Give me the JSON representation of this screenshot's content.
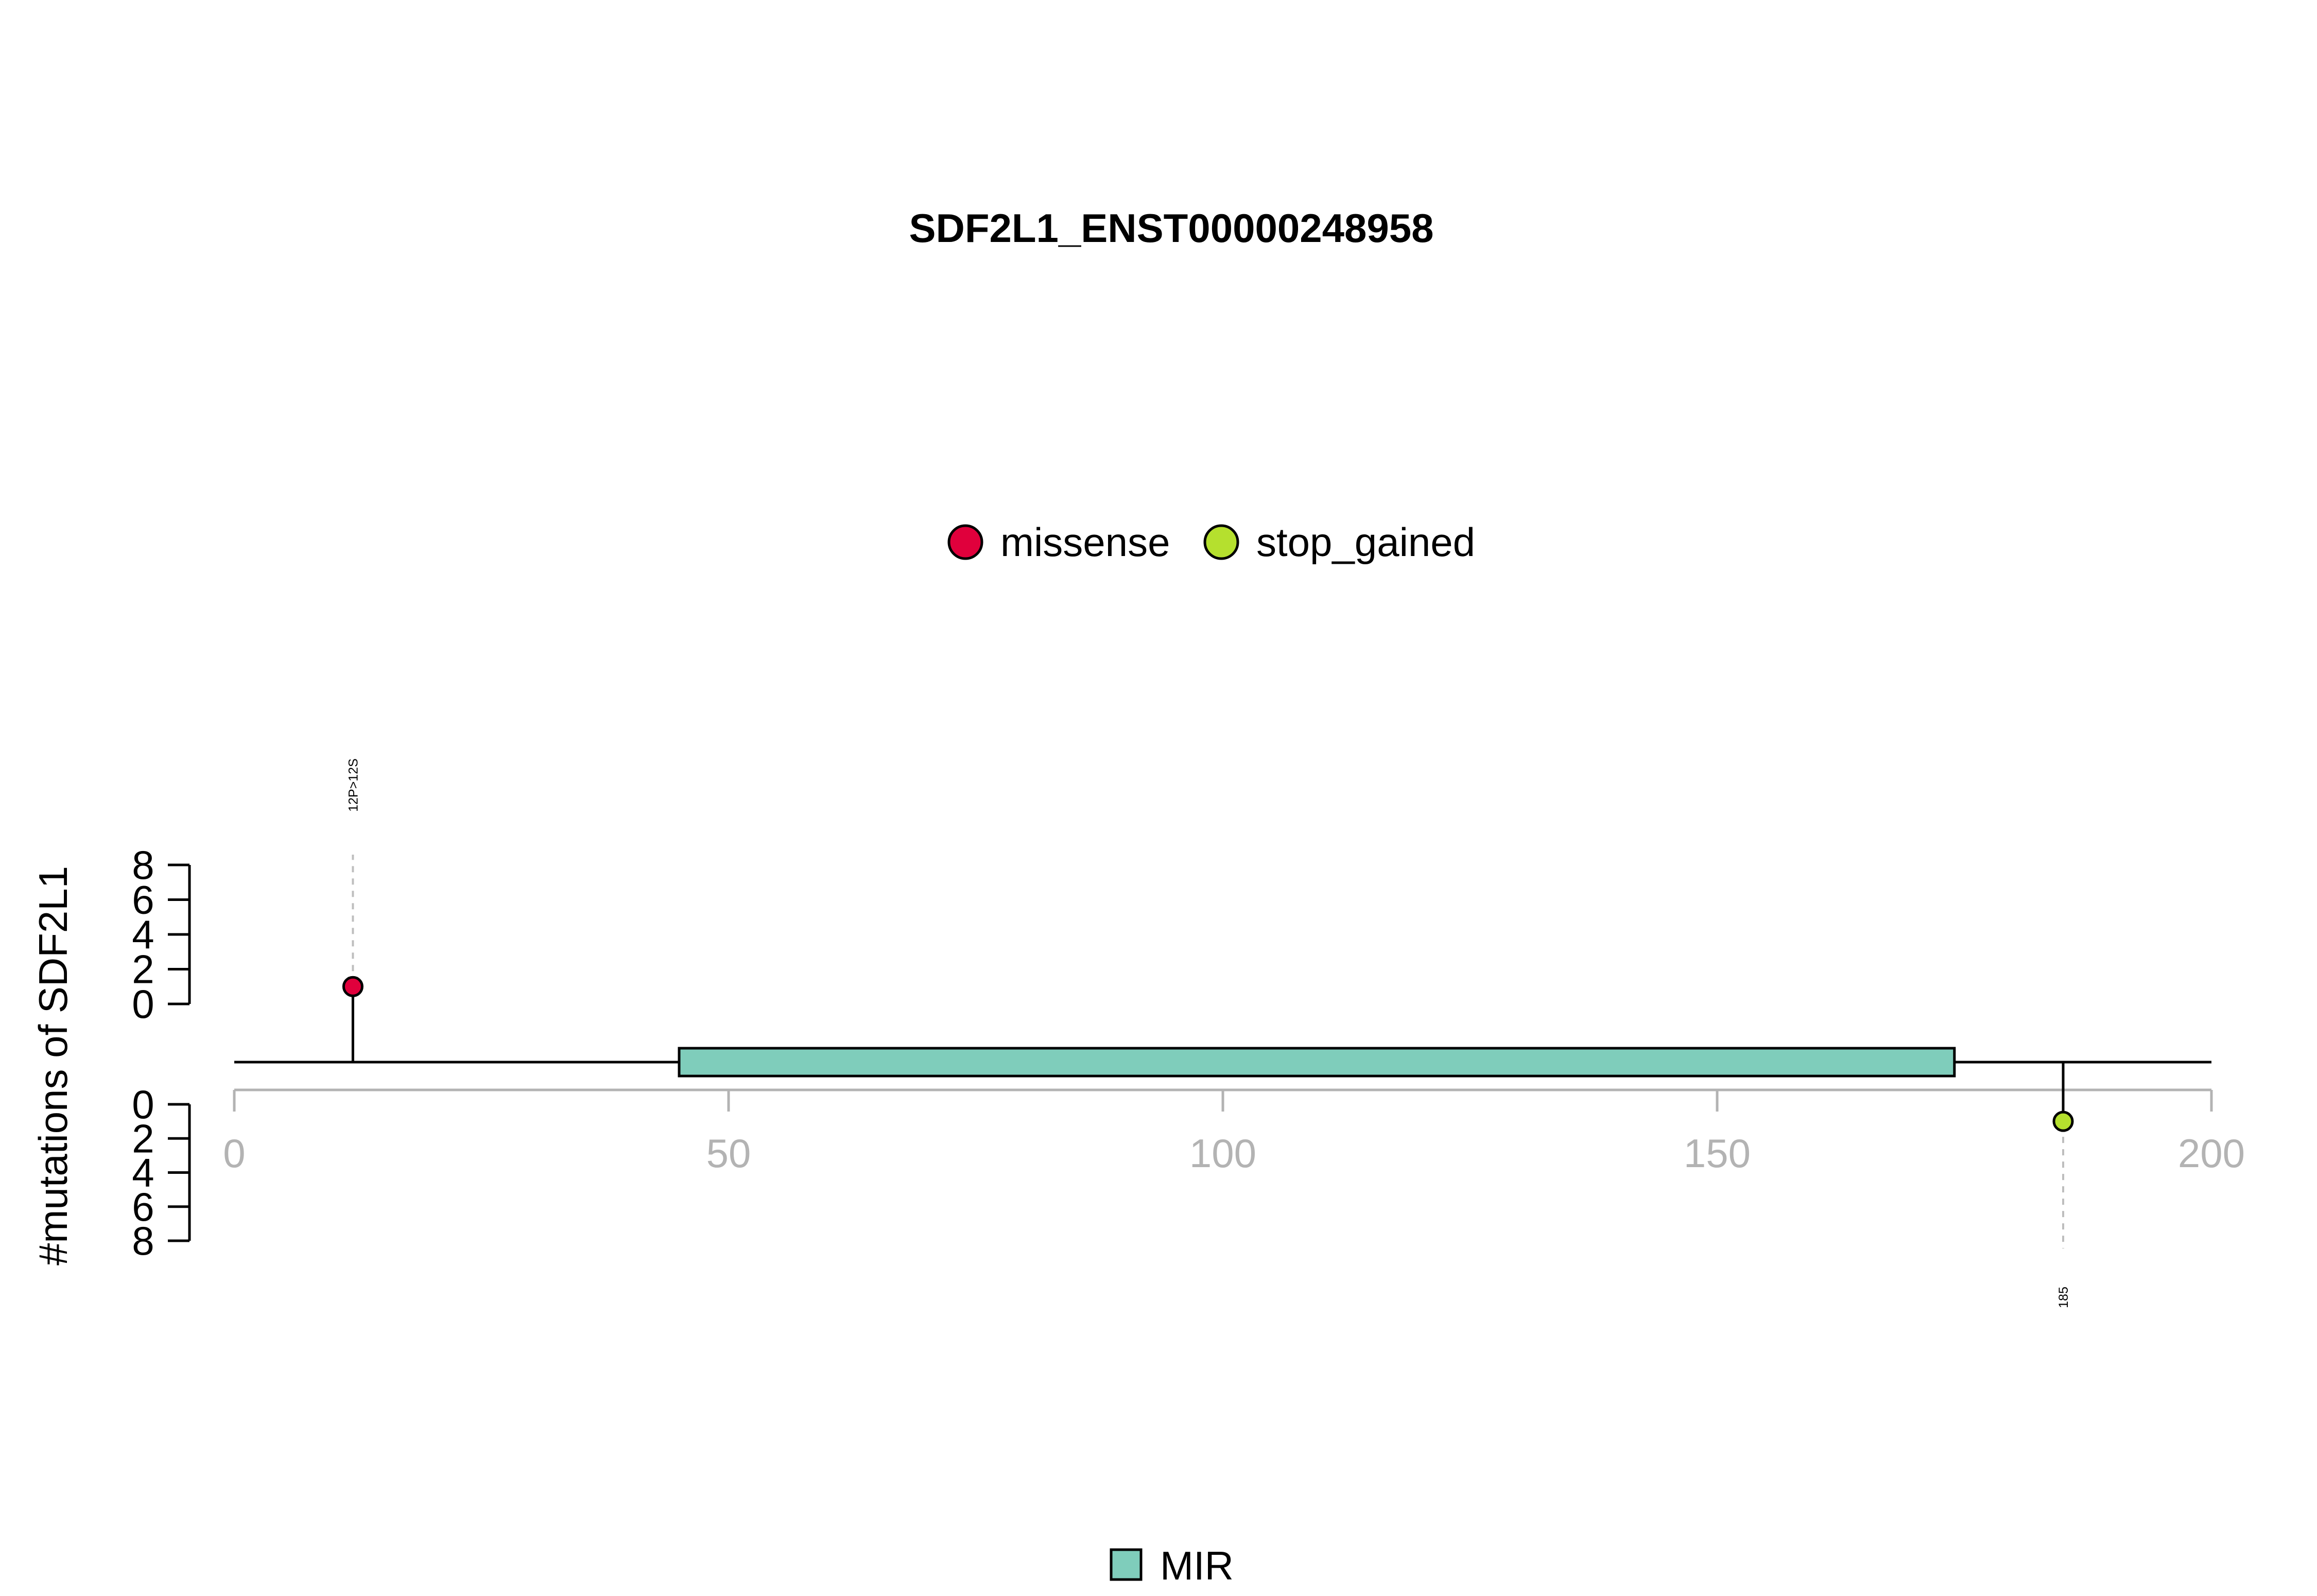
{
  "chart_data": {
    "type": "lollipop",
    "title": "SDF2L1_ENST00000248958",
    "ylabel": "#mutations of SDF2L1",
    "xlim": [
      0,
      200
    ],
    "x_ticks": [
      0,
      50,
      100,
      150,
      200
    ],
    "x_tick_labels": [
      "0",
      "50",
      "100",
      "150",
      "200"
    ],
    "y_ticks": [
      0,
      2,
      4,
      6,
      8
    ],
    "y_tick_labels": [
      "0",
      "2",
      "4",
      "6",
      "8"
    ],
    "ylim": [
      0,
      8
    ],
    "protein_length": 200,
    "legend": [
      {
        "label": "missense",
        "color": "#E0003C"
      },
      {
        "label": "stop_gained",
        "color": "#B5E02E"
      }
    ],
    "mutations": [
      {
        "position": 12,
        "count": 1,
        "type": "missense",
        "label": "12P>12S",
        "side": "top"
      },
      {
        "position": 185,
        "count": 1,
        "type": "stop_gained",
        "label": "185",
        "side": "bottom"
      }
    ],
    "domains": [
      {
        "name": "MIR",
        "start": 45,
        "end": 174,
        "color": "#7FCDBB"
      }
    ],
    "domain_legend": [
      {
        "label": "MIR",
        "color": "#7FCDBB"
      }
    ],
    "colors": {
      "axis_gray": "#B3B3B3",
      "backbone": "#000000",
      "guide": "#BEBEBE"
    }
  }
}
